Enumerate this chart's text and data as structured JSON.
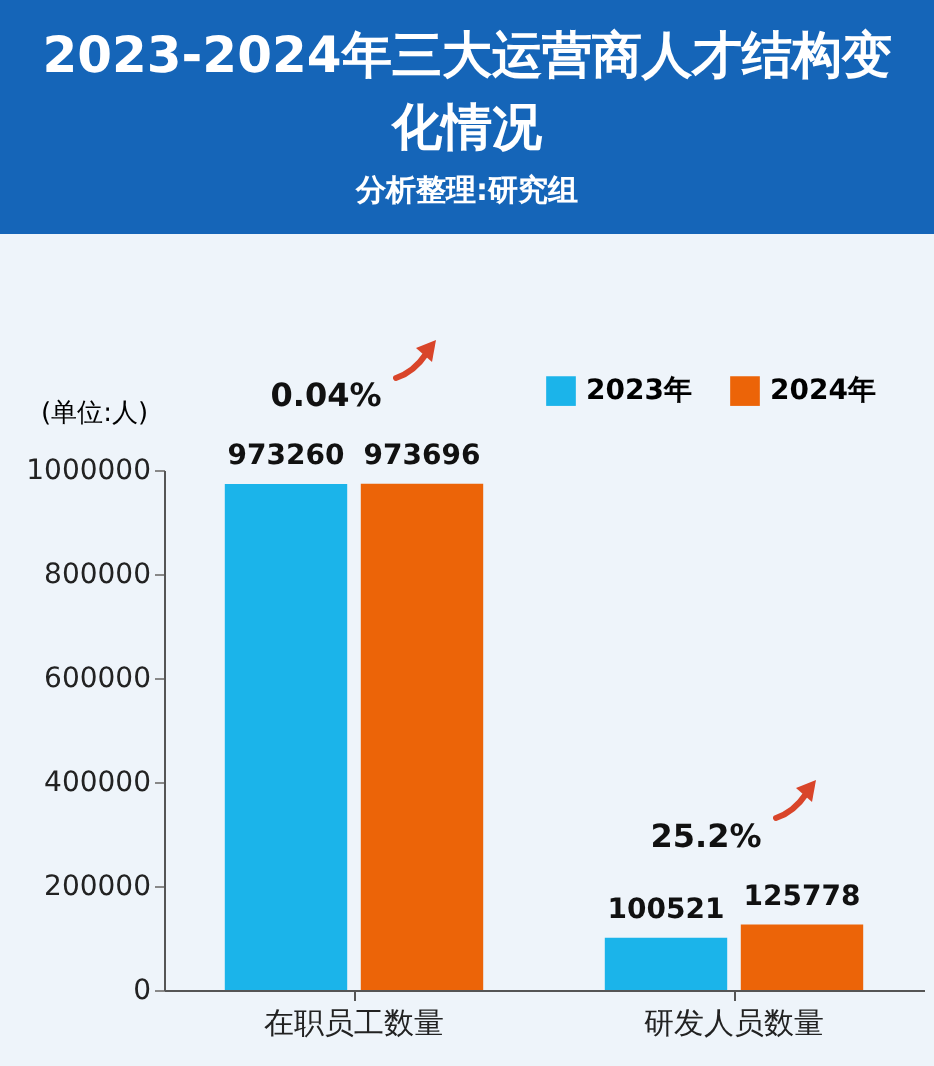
{
  "chart_data": {
    "type": "bar",
    "title": "2023-2024年三大运营商人才结构变化情况",
    "subtitle": "分析整理:研究组",
    "ylabel": "(单位:人)",
    "categories": [
      "在职员工数量",
      "研发人员数量"
    ],
    "series": [
      {
        "name": "2023年",
        "color": "#1bb4ea",
        "values": [
          973260,
          100521
        ]
      },
      {
        "name": "2024年",
        "color": "#ec6408",
        "values": [
          973696,
          125778
        ]
      }
    ],
    "ylim": [
      0,
      1000000
    ],
    "yticks": [
      0,
      200000,
      400000,
      600000,
      800000,
      1000000
    ],
    "grid": false,
    "legend": "top right",
    "data_labels": true,
    "annotations": [
      "0.04%",
      "25.2%"
    ]
  }
}
